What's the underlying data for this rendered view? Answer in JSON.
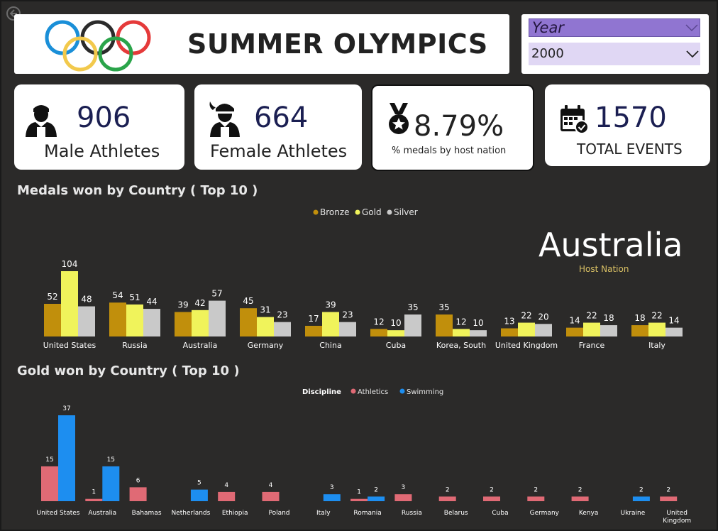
{
  "header": {
    "title": "SUMMER OLYMPICS"
  },
  "slicer": {
    "label": "Year",
    "value": "2000"
  },
  "kpis": {
    "male": {
      "value": "906",
      "label": "Male Athletes"
    },
    "female": {
      "value": "664",
      "label": "Female Athletes"
    },
    "host_pct": {
      "value": "8.79%",
      "label": "% medals by host nation"
    },
    "events": {
      "value": "1570",
      "label": "TOTAL EVENTS"
    }
  },
  "host": {
    "country": "Australia",
    "caption": "Host Nation"
  },
  "colors": {
    "bronze": "#c18f0c",
    "gold": "#f0f35b",
    "silver": "#c9c9c9",
    "athletics": "#e06a75",
    "swimming": "#1d8ef0"
  },
  "chart_data": [
    {
      "type": "bar",
      "title": "Medals won by Country ( Top 10 )",
      "legend_position": "top-center",
      "categories": [
        "United States",
        "Russia",
        "Australia",
        "Germany",
        "China",
        "Cuba",
        "Korea, South",
        "United Kingdom",
        "France",
        "Italy"
      ],
      "series": [
        {
          "name": "Bronze",
          "values": [
            52,
            54,
            39,
            45,
            17,
            12,
            35,
            13,
            14,
            18
          ]
        },
        {
          "name": "Gold",
          "values": [
            104,
            51,
            42,
            31,
            39,
            10,
            12,
            22,
            22,
            22
          ]
        },
        {
          "name": "Silver",
          "values": [
            48,
            44,
            57,
            23,
            23,
            35,
            10,
            20,
            18,
            14
          ]
        }
      ],
      "ylim": [
        0,
        104
      ]
    },
    {
      "type": "bar",
      "title": "Gold won by Country ( Top 10 )",
      "legend_title": "Discipline",
      "legend_position": "top-center",
      "categories": [
        "United States",
        "Australia",
        "Bahamas",
        "Netherlands",
        "Ethiopia",
        "Poland",
        "Italy",
        "Romania",
        "Russia",
        "Belarus",
        "Cuba",
        "Germany",
        "Kenya",
        "Ukraine",
        "United Kingdom"
      ],
      "series": [
        {
          "name": "Athletics",
          "values": [
            15,
            1,
            6,
            null,
            4,
            4,
            null,
            1,
            3,
            2,
            2,
            2,
            2,
            null,
            2
          ]
        },
        {
          "name": "Swimming",
          "values": [
            37,
            15,
            null,
            5,
            null,
            null,
            3,
            2,
            null,
            null,
            null,
            null,
            null,
            2,
            null
          ]
        }
      ],
      "ylim": [
        0,
        37
      ]
    }
  ]
}
